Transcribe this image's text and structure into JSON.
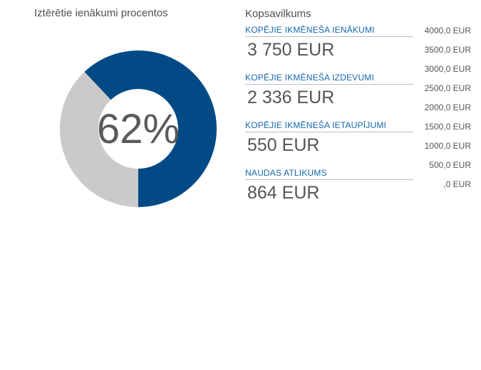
{
  "donut": {
    "title": "Iztērētie ienākumi procentos",
    "percent_label": "62%",
    "spent_fraction": 0.62,
    "colors": {
      "spent": "#014a86",
      "remaining": "#cacaca"
    }
  },
  "summary": {
    "title": "Kopsavilkums",
    "items": [
      {
        "label": "KOPĒJIE IKMĒNEŠA IENĀKUMI",
        "value": "3 750 EUR"
      },
      {
        "label": "KOPĒJIE IKMĒNEŠA IZDEVUMI",
        "value": "2 336 EUR"
      },
      {
        "label": "KOPĒJIE IKMĒNEŠA IETAUPĪJUMI",
        "value": "550 EUR"
      },
      {
        "label": "NAUDAS ATLIKUMS",
        "value": "864 EUR"
      }
    ],
    "label_color": "#1466b0"
  },
  "scale": {
    "ticks": [
      "4000,0 EUR",
      "3500,0 EUR",
      "3000,0 EUR",
      "2500,0 EUR",
      "2000,0 EUR",
      "1500,0 EUR",
      "1000,0 EUR",
      "500,0 EUR",
      ",0 EUR"
    ]
  }
}
